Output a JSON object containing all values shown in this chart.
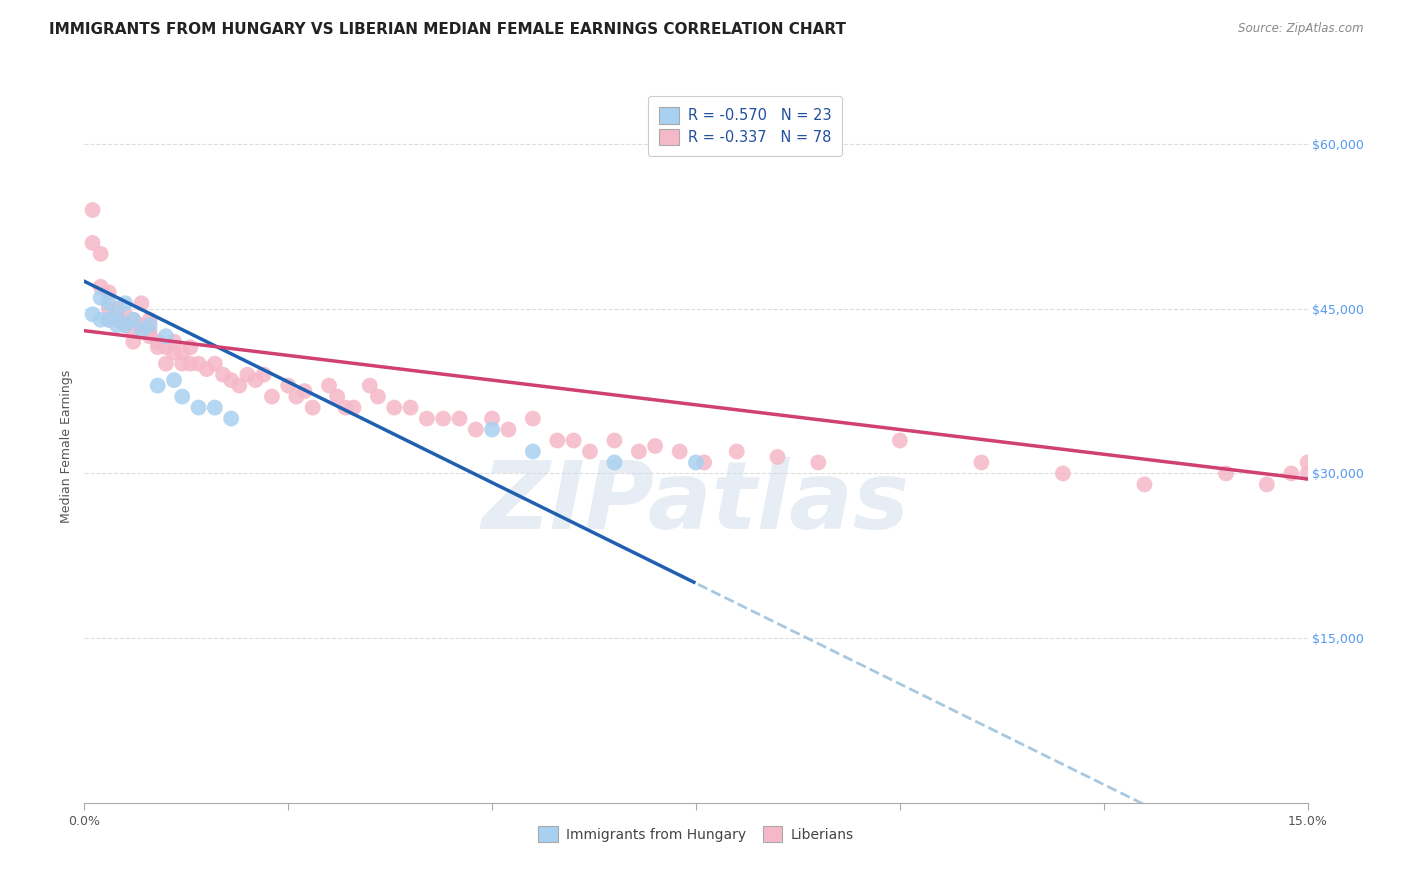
{
  "title": "IMMIGRANTS FROM HUNGARY VS LIBERIAN MEDIAN FEMALE EARNINGS CORRELATION CHART",
  "source": "Source: ZipAtlas.com",
  "ylabel": "Median Female Earnings",
  "ytick_labels": [
    "$15,000",
    "$30,000",
    "$45,000",
    "$60,000"
  ],
  "ytick_values": [
    15000,
    30000,
    45000,
    60000
  ],
  "watermark": "ZIPatlas",
  "hungary_x": [
    0.001,
    0.002,
    0.002,
    0.003,
    0.003,
    0.004,
    0.004,
    0.005,
    0.005,
    0.006,
    0.007,
    0.008,
    0.009,
    0.01,
    0.011,
    0.012,
    0.014,
    0.016,
    0.018,
    0.05,
    0.055,
    0.065,
    0.075
  ],
  "hungary_y": [
    44500,
    46000,
    44000,
    45500,
    44000,
    44500,
    43500,
    45500,
    43500,
    44000,
    43000,
    43500,
    38000,
    42500,
    38500,
    37000,
    36000,
    36000,
    35000,
    34000,
    32000,
    31000,
    31000
  ],
  "liberian_x": [
    0.001,
    0.001,
    0.002,
    0.002,
    0.003,
    0.003,
    0.003,
    0.004,
    0.004,
    0.005,
    0.005,
    0.006,
    0.006,
    0.006,
    0.007,
    0.007,
    0.008,
    0.008,
    0.008,
    0.009,
    0.009,
    0.01,
    0.01,
    0.011,
    0.011,
    0.012,
    0.012,
    0.013,
    0.013,
    0.014,
    0.015,
    0.016,
    0.017,
    0.018,
    0.019,
    0.02,
    0.021,
    0.022,
    0.023,
    0.025,
    0.026,
    0.027,
    0.028,
    0.03,
    0.031,
    0.032,
    0.033,
    0.035,
    0.036,
    0.038,
    0.04,
    0.042,
    0.044,
    0.046,
    0.048,
    0.05,
    0.052,
    0.055,
    0.058,
    0.06,
    0.062,
    0.065,
    0.068,
    0.07,
    0.073,
    0.076,
    0.08,
    0.085,
    0.09,
    0.1,
    0.11,
    0.12,
    0.13,
    0.14,
    0.145,
    0.148,
    0.15,
    0.15
  ],
  "liberian_y": [
    54000,
    51000,
    50000,
    47000,
    46500,
    45000,
    44000,
    45000,
    44000,
    44500,
    43500,
    44000,
    43000,
    42000,
    45500,
    43500,
    44000,
    43000,
    42500,
    42000,
    41500,
    41500,
    40000,
    42000,
    41000,
    41000,
    40000,
    41500,
    40000,
    40000,
    39500,
    40000,
    39000,
    38500,
    38000,
    39000,
    38500,
    39000,
    37000,
    38000,
    37000,
    37500,
    36000,
    38000,
    37000,
    36000,
    36000,
    38000,
    37000,
    36000,
    36000,
    35000,
    35000,
    35000,
    34000,
    35000,
    34000,
    35000,
    33000,
    33000,
    32000,
    33000,
    32000,
    32500,
    32000,
    31000,
    32000,
    31500,
    31000,
    33000,
    31000,
    30000,
    29000,
    30000,
    29000,
    30000,
    31000,
    30000
  ],
  "hungary_color": "#a8d0f0",
  "liberian_color": "#f5b8c8",
  "hungary_line_color": "#2060b0",
  "liberian_line_color": "#d04070",
  "dashed_line_color": "#a8c8e0",
  "xlim": [
    0.0,
    0.15
  ],
  "ylim": [
    0,
    65000
  ],
  "legend_box_color_hungary": "#a8d0f0",
  "legend_box_color_liberian": "#f5b8c8",
  "legend_text_color": "#2050a0",
  "hungary_line_x0": 0.0,
  "hungary_line_y0": 47500,
  "hungary_line_x1": 0.075,
  "hungary_line_y1": 20000,
  "hungary_line_solid_end": 0.075,
  "liberian_line_x0": 0.0,
  "liberian_line_y0": 43000,
  "liberian_line_x1": 0.15,
  "liberian_line_y1": 29500,
  "title_fontsize": 11,
  "axis_label_fontsize": 9,
  "tick_label_fontsize": 9
}
